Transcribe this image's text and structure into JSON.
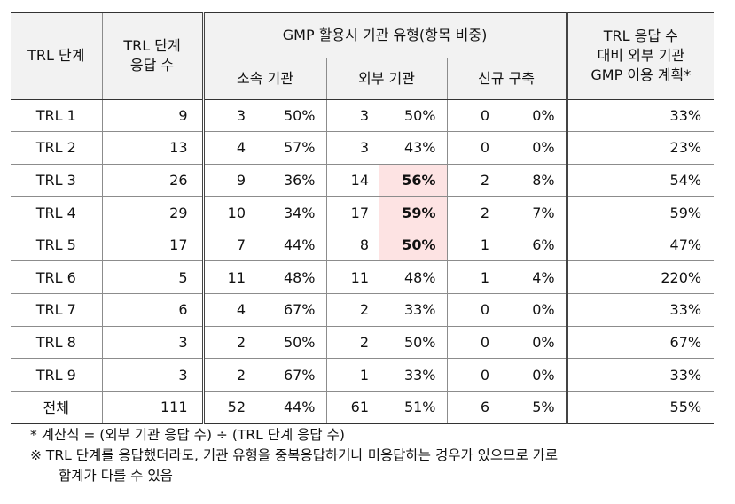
{
  "header": {
    "trl_stage": "TRL 단계",
    "trl_responses_line1": "TRL 단계",
    "trl_responses_line2": "응답 수",
    "gmp_type": "GMP 활용시 기관 유형(항목 비중)",
    "own_org": "소속 기관",
    "external_org": "외부 기관",
    "new_build": "신규 구축",
    "ratio_line1": "TRL 응답 수",
    "ratio_line2": "대비 외부 기관",
    "ratio_line3": "GMP 이용 계획*"
  },
  "rows": [
    {
      "stage": "TRL 1",
      "responses": "9",
      "own_n": "3",
      "own_p": "50%",
      "ext_n": "3",
      "ext_p": "50%",
      "new_n": "0",
      "new_p": "0%",
      "ratio": "33%"
    },
    {
      "stage": "TRL 2",
      "responses": "13",
      "own_n": "4",
      "own_p": "57%",
      "ext_n": "3",
      "ext_p": "43%",
      "new_n": "0",
      "new_p": "0%",
      "ratio": "23%"
    },
    {
      "stage": "TRL 3",
      "responses": "26",
      "own_n": "9",
      "own_p": "36%",
      "ext_n": "14",
      "ext_p": "56%",
      "new_n": "2",
      "new_p": "8%",
      "ratio": "54%"
    },
    {
      "stage": "TRL 4",
      "responses": "29",
      "own_n": "10",
      "own_p": "34%",
      "ext_n": "17",
      "ext_p": "59%",
      "new_n": "2",
      "new_p": "7%",
      "ratio": "59%"
    },
    {
      "stage": "TRL 5",
      "responses": "17",
      "own_n": "7",
      "own_p": "44%",
      "ext_n": "8",
      "ext_p": "50%",
      "new_n": "1",
      "new_p": "6%",
      "ratio": "47%"
    },
    {
      "stage": "TRL 6",
      "responses": "5",
      "own_n": "11",
      "own_p": "48%",
      "ext_n": "11",
      "ext_p": "48%",
      "new_n": "1",
      "new_p": "4%",
      "ratio": "220%"
    },
    {
      "stage": "TRL 7",
      "responses": "6",
      "own_n": "4",
      "own_p": "67%",
      "ext_n": "2",
      "ext_p": "33%",
      "new_n": "0",
      "new_p": "0%",
      "ratio": "33%"
    },
    {
      "stage": "TRL 8",
      "responses": "3",
      "own_n": "2",
      "own_p": "50%",
      "ext_n": "2",
      "ext_p": "50%",
      "new_n": "0",
      "new_p": "0%",
      "ratio": "67%"
    },
    {
      "stage": "TRL 9",
      "responses": "3",
      "own_n": "2",
      "own_p": "67%",
      "ext_n": "1",
      "ext_p": "33%",
      "new_n": "0",
      "new_p": "0%",
      "ratio": "33%"
    },
    {
      "stage": "전체",
      "responses": "111",
      "own_n": "52",
      "own_p": "44%",
      "ext_n": "61",
      "ext_p": "51%",
      "new_n": "6",
      "new_p": "5%",
      "ratio": "55%"
    }
  ],
  "highlight_color": "#fde3e3",
  "notes": {
    "formula": "* 계산식 = (외부 기관 응답 수) ÷ (TRL 단계 응답 수)",
    "caveat_line1": "※ TRL 단계를 응답했더라도, 기관 유형을 중복응답하거나 미응답하는 경우가 있으므로 가로",
    "caveat_line2": "합계가 다를 수 있음"
  }
}
